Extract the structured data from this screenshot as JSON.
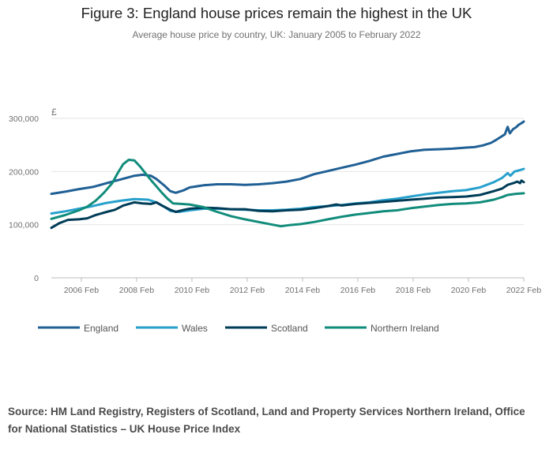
{
  "title": "Figure 3: England house prices remain the highest in the UK",
  "subtitle": "Average house price by country, UK: January 2005 to February 2022",
  "source": "Source: HM Land Registry, Registers of Scotland, Land and Property Services Northern Ireland, Office for National Statistics – UK House Price Index",
  "chart_data": {
    "type": "line",
    "ylabel": "£",
    "ylim": [
      0,
      300000
    ],
    "yticks": [
      0,
      100000,
      200000,
      300000
    ],
    "ytick_labels": [
      "0",
      "100,000",
      "200,000",
      "300,000"
    ],
    "xlim": [
      2005.0,
      2022.083
    ],
    "xticks": [
      2006.083,
      2008.083,
      2010.083,
      2012.083,
      2014.083,
      2016.083,
      2018.083,
      2020.083,
      2022.083
    ],
    "xtick_labels": [
      "2006 Feb",
      "2008 Feb",
      "2010 Feb",
      "2012 Feb",
      "2014 Feb",
      "2016 Feb",
      "2018 Feb",
      "2020 Feb",
      "2022 Feb"
    ],
    "grid": true,
    "legend_position": "bottom",
    "series": [
      {
        "name": "England",
        "color": "#206095",
        "points": [
          [
            2005.0,
            158000
          ],
          [
            2005.5,
            162000
          ],
          [
            2006.0,
            167000
          ],
          [
            2006.5,
            171000
          ],
          [
            2007.0,
            178000
          ],
          [
            2007.5,
            185000
          ],
          [
            2008.0,
            192000
          ],
          [
            2008.3,
            194000
          ],
          [
            2008.6,
            192000
          ],
          [
            2008.8,
            186000
          ],
          [
            2009.1,
            173000
          ],
          [
            2009.3,
            163000
          ],
          [
            2009.5,
            160000
          ],
          [
            2009.8,
            165000
          ],
          [
            2010.0,
            170000
          ],
          [
            2010.5,
            174000
          ],
          [
            2011.0,
            176000
          ],
          [
            2011.5,
            176000
          ],
          [
            2012.0,
            175000
          ],
          [
            2012.5,
            176000
          ],
          [
            2013.0,
            178000
          ],
          [
            2013.5,
            181000
          ],
          [
            2014.0,
            186000
          ],
          [
            2014.5,
            195000
          ],
          [
            2015.0,
            201000
          ],
          [
            2015.5,
            207000
          ],
          [
            2016.0,
            213000
          ],
          [
            2016.5,
            220000
          ],
          [
            2017.0,
            228000
          ],
          [
            2017.5,
            233000
          ],
          [
            2018.0,
            238000
          ],
          [
            2018.5,
            241000
          ],
          [
            2019.0,
            242000
          ],
          [
            2019.5,
            243000
          ],
          [
            2020.0,
            245000
          ],
          [
            2020.3,
            246000
          ],
          [
            2020.6,
            249000
          ],
          [
            2020.9,
            254000
          ],
          [
            2021.1,
            260000
          ],
          [
            2021.25,
            265000
          ],
          [
            2021.4,
            270000
          ],
          [
            2021.5,
            284000
          ],
          [
            2021.58,
            272000
          ],
          [
            2021.7,
            280000
          ],
          [
            2021.8,
            283000
          ],
          [
            2021.9,
            288000
          ],
          [
            2022.0,
            291000
          ],
          [
            2022.083,
            294000
          ]
        ]
      },
      {
        "name": "Wales",
        "color": "#27a0cc",
        "points": [
          [
            2005.0,
            121000
          ],
          [
            2005.5,
            125000
          ],
          [
            2006.0,
            130000
          ],
          [
            2006.5,
            135000
          ],
          [
            2007.0,
            141000
          ],
          [
            2007.5,
            145000
          ],
          [
            2008.0,
            148000
          ],
          [
            2008.5,
            147000
          ],
          [
            2008.8,
            142000
          ],
          [
            2009.1,
            133000
          ],
          [
            2009.3,
            126000
          ],
          [
            2009.6,
            124000
          ],
          [
            2010.0,
            127000
          ],
          [
            2010.5,
            130000
          ],
          [
            2011.0,
            130000
          ],
          [
            2011.5,
            129000
          ],
          [
            2012.0,
            128000
          ],
          [
            2012.5,
            127000
          ],
          [
            2013.0,
            127000
          ],
          [
            2013.5,
            128000
          ],
          [
            2014.0,
            130000
          ],
          [
            2014.5,
            133000
          ],
          [
            2015.0,
            135000
          ],
          [
            2015.5,
            137000
          ],
          [
            2016.0,
            140000
          ],
          [
            2016.5,
            142000
          ],
          [
            2017.0,
            146000
          ],
          [
            2017.5,
            149000
          ],
          [
            2018.0,
            153000
          ],
          [
            2018.5,
            157000
          ],
          [
            2019.0,
            160000
          ],
          [
            2019.5,
            163000
          ],
          [
            2020.0,
            165000
          ],
          [
            2020.5,
            170000
          ],
          [
            2021.0,
            180000
          ],
          [
            2021.3,
            188000
          ],
          [
            2021.5,
            197000
          ],
          [
            2021.6,
            192000
          ],
          [
            2021.75,
            200000
          ],
          [
            2021.9,
            202000
          ],
          [
            2022.083,
            205000
          ]
        ]
      },
      {
        "name": "Scotland",
        "color": "#003c57",
        "points": [
          [
            2005.0,
            94000
          ],
          [
            2005.3,
            103000
          ],
          [
            2005.6,
            109000
          ],
          [
            2006.0,
            110000
          ],
          [
            2006.3,
            112000
          ],
          [
            2006.6,
            118000
          ],
          [
            2007.0,
            124000
          ],
          [
            2007.3,
            128000
          ],
          [
            2007.6,
            136000
          ],
          [
            2008.0,
            142000
          ],
          [
            2008.3,
            140000
          ],
          [
            2008.6,
            139000
          ],
          [
            2008.8,
            142000
          ],
          [
            2009.0,
            136000
          ],
          [
            2009.3,
            128000
          ],
          [
            2009.5,
            124000
          ],
          [
            2009.8,
            128000
          ],
          [
            2010.0,
            130000
          ],
          [
            2010.5,
            132000
          ],
          [
            2011.0,
            131000
          ],
          [
            2011.5,
            129000
          ],
          [
            2012.0,
            129000
          ],
          [
            2012.5,
            126000
          ],
          [
            2013.0,
            125000
          ],
          [
            2013.5,
            127000
          ],
          [
            2014.0,
            128000
          ],
          [
            2014.5,
            131000
          ],
          [
            2015.0,
            135000
          ],
          [
            2015.3,
            138000
          ],
          [
            2015.5,
            136000
          ],
          [
            2016.0,
            139000
          ],
          [
            2016.5,
            141000
          ],
          [
            2017.0,
            143000
          ],
          [
            2017.5,
            145000
          ],
          [
            2018.0,
            147000
          ],
          [
            2018.5,
            149000
          ],
          [
            2019.0,
            151000
          ],
          [
            2019.5,
            152000
          ],
          [
            2020.0,
            153000
          ],
          [
            2020.5,
            156000
          ],
          [
            2021.0,
            163000
          ],
          [
            2021.3,
            168000
          ],
          [
            2021.5,
            175000
          ],
          [
            2021.7,
            178000
          ],
          [
            2021.85,
            181000
          ],
          [
            2021.95,
            178000
          ],
          [
            2022.0,
            183000
          ],
          [
            2022.083,
            180000
          ]
        ]
      },
      {
        "name": "Northern Ireland",
        "color": "#118c7b",
        "points": [
          [
            2005.0,
            111000
          ],
          [
            2005.5,
            118000
          ],
          [
            2006.0,
            127000
          ],
          [
            2006.3,
            134000
          ],
          [
            2006.6,
            145000
          ],
          [
            2006.9,
            160000
          ],
          [
            2007.2,
            178000
          ],
          [
            2007.4,
            197000
          ],
          [
            2007.6,
            214000
          ],
          [
            2007.8,
            222000
          ],
          [
            2008.0,
            221000
          ],
          [
            2008.2,
            210000
          ],
          [
            2008.4,
            197000
          ],
          [
            2008.6,
            184000
          ],
          [
            2008.8,
            172000
          ],
          [
            2009.0,
            160000
          ],
          [
            2009.2,
            149000
          ],
          [
            2009.4,
            140000
          ],
          [
            2009.7,
            139000
          ],
          [
            2010.0,
            138000
          ],
          [
            2010.5,
            133000
          ],
          [
            2011.0,
            124000
          ],
          [
            2011.5,
            116000
          ],
          [
            2012.0,
            110000
          ],
          [
            2012.5,
            105000
          ],
          [
            2013.0,
            100000
          ],
          [
            2013.3,
            97000
          ],
          [
            2013.6,
            99000
          ],
          [
            2014.0,
            101000
          ],
          [
            2014.5,
            105000
          ],
          [
            2015.0,
            110000
          ],
          [
            2015.5,
            115000
          ],
          [
            2016.0,
            119000
          ],
          [
            2016.5,
            122000
          ],
          [
            2017.0,
            125000
          ],
          [
            2017.5,
            127000
          ],
          [
            2018.0,
            131000
          ],
          [
            2018.5,
            134000
          ],
          [
            2019.0,
            137000
          ],
          [
            2019.5,
            139000
          ],
          [
            2020.0,
            140000
          ],
          [
            2020.5,
            142000
          ],
          [
            2021.0,
            147000
          ],
          [
            2021.3,
            152000
          ],
          [
            2021.5,
            156000
          ],
          [
            2021.8,
            158000
          ],
          [
            2022.083,
            159000
          ]
        ]
      }
    ]
  }
}
